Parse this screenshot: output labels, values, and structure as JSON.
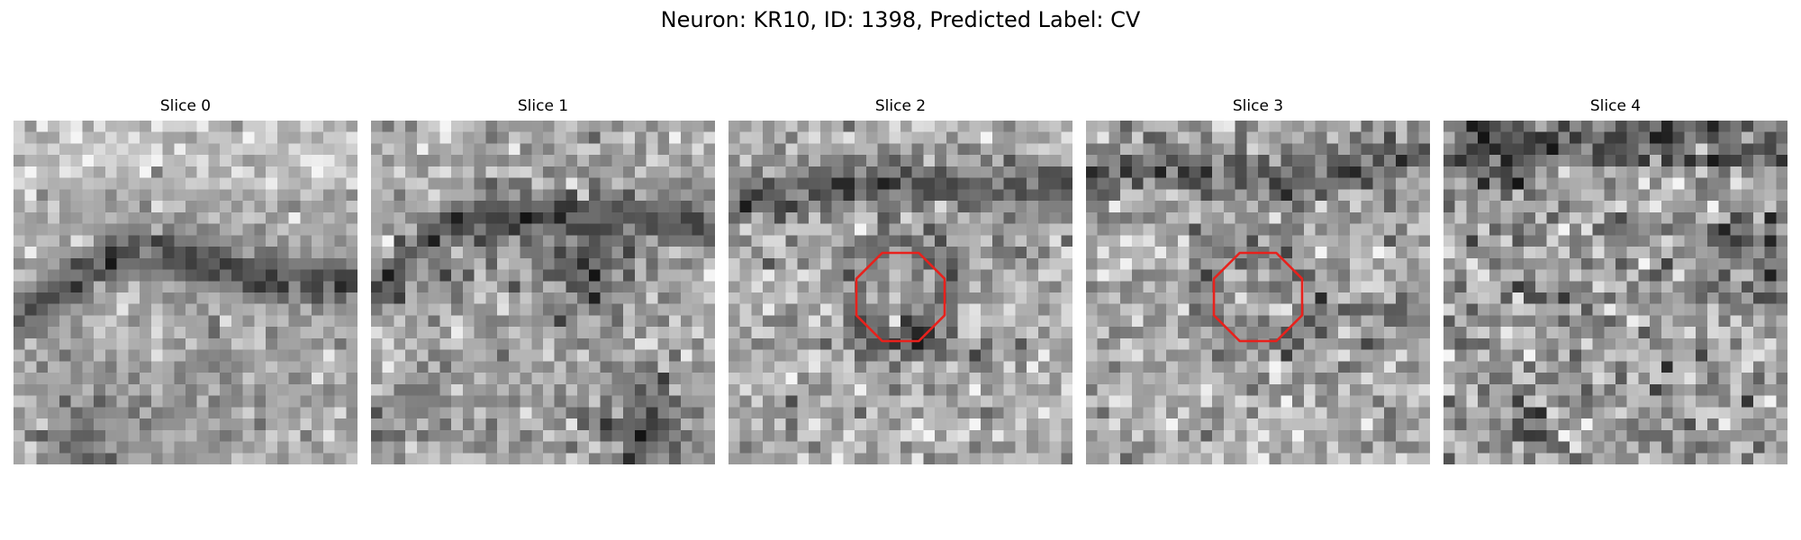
{
  "figure": {
    "title": "Neuron: KR10, ID: 1398, Predicted Label: CV"
  },
  "slices": [
    {
      "label": "Slice 0",
      "has_roi": false
    },
    {
      "label": "Slice 1",
      "has_roi": false
    },
    {
      "label": "Slice 2",
      "has_roi": true
    },
    {
      "label": "Slice 3",
      "has_roi": true
    },
    {
      "label": "Slice 4",
      "has_roi": false
    }
  ],
  "colormap": "gray",
  "roi": {
    "shape": "octagon",
    "color": "#e8211c"
  }
}
